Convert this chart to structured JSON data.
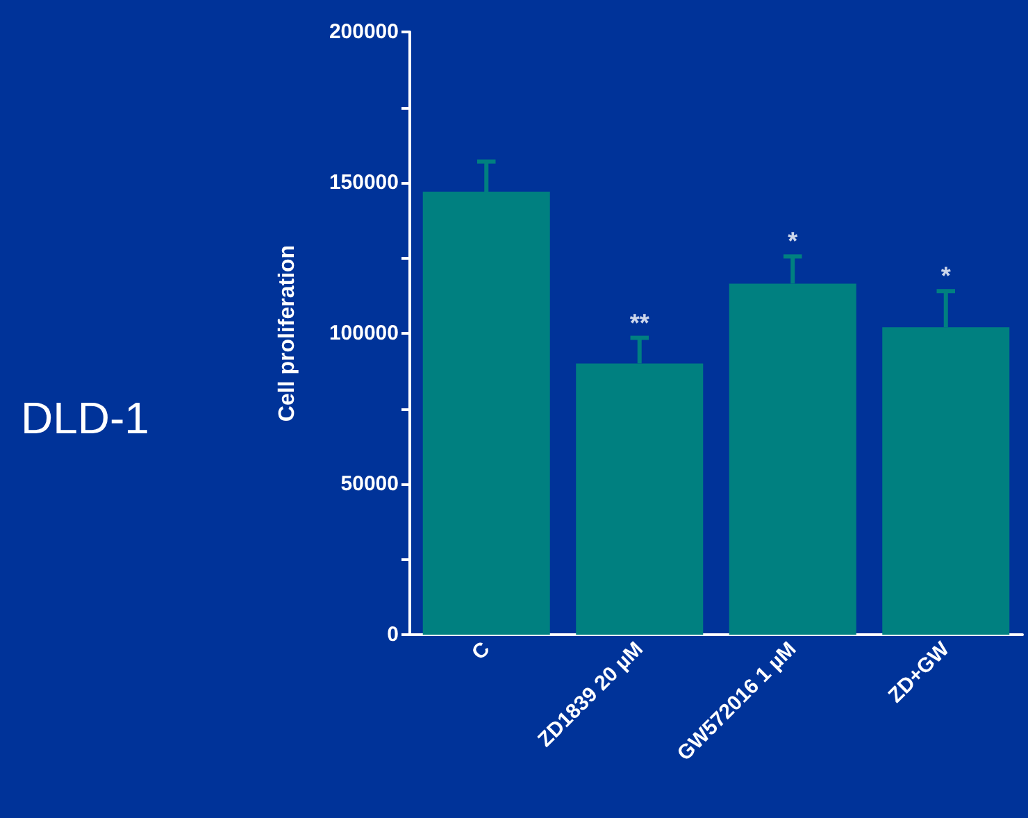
{
  "chart_data": {
    "type": "bar",
    "ylabel": "Cell proliferation",
    "categories": [
      "C",
      "ZD1839 20 µM",
      "GW572016 1 µM",
      "ZD+GW"
    ],
    "values": [
      147000,
      90000,
      116500,
      102000
    ],
    "errors": [
      10000,
      8500,
      9000,
      12000
    ],
    "color": "#008080",
    "ylim": [
      0,
      200000
    ],
    "yticks": [
      0,
      {
        "value": 25000,
        "label": null
      },
      50000,
      {
        "value": 75000,
        "label": null
      },
      100000,
      {
        "value": 125000,
        "label": null
      },
      150000,
      {
        "value": 175000,
        "label": null
      },
      200000
    ],
    "grid": false,
    "annotations": [
      {
        "text": "**",
        "x": "ZD1839 20 µM",
        "y": 98500
      },
      {
        "text": "*",
        "x": "GW572016 1 µM",
        "y": 125500
      },
      {
        "text": "*",
        "x": "ZD+GW",
        "y": 114000
      },
      "DLD-1"
    ]
  }
}
